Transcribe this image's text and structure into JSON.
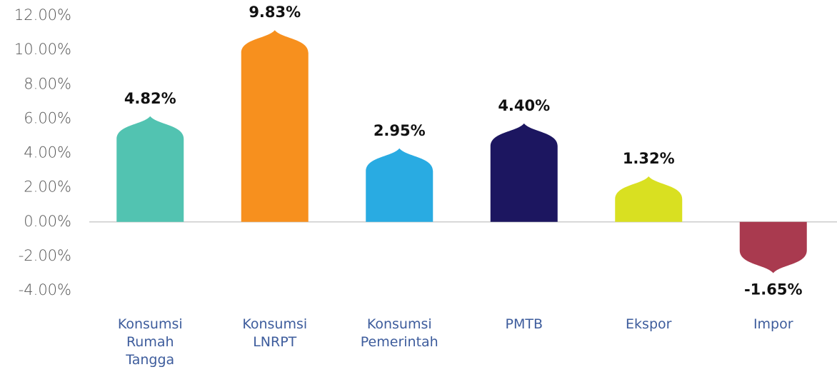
{
  "chart_data": {
    "type": "bar",
    "categories": [
      "Konsumsi Rumah Tangga",
      "Konsumsi LNRPT",
      "Konsumsi Pemerintah",
      "PMTB",
      "Ekspor",
      "Impor"
    ],
    "values": [
      4.82,
      9.83,
      2.95,
      4.4,
      1.32,
      -1.65
    ],
    "value_labels": [
      "4.82%",
      "9.83%",
      "2.95%",
      "4.40%",
      "1.32%",
      "-1.65%"
    ],
    "colors": [
      "#52c3b1",
      "#f7901e",
      "#29abe2",
      "#1c1660",
      "#d9e021",
      "#a93a4f"
    ],
    "ylim": [
      -4,
      12
    ],
    "yticks": [
      {
        "value": -4,
        "label": "-4.00%"
      },
      {
        "value": -2,
        "label": "-2.00%"
      },
      {
        "value": 0,
        "label": "0.00%"
      },
      {
        "value": 2,
        "label": "2.00%"
      },
      {
        "value": 4,
        "label": "4.00%"
      },
      {
        "value": 6,
        "label": "6.00%"
      },
      {
        "value": 8,
        "label": "8.00%"
      },
      {
        "value": 10,
        "label": "10.00%"
      },
      {
        "value": 12,
        "label": "12.00%"
      }
    ],
    "grid": false
  }
}
